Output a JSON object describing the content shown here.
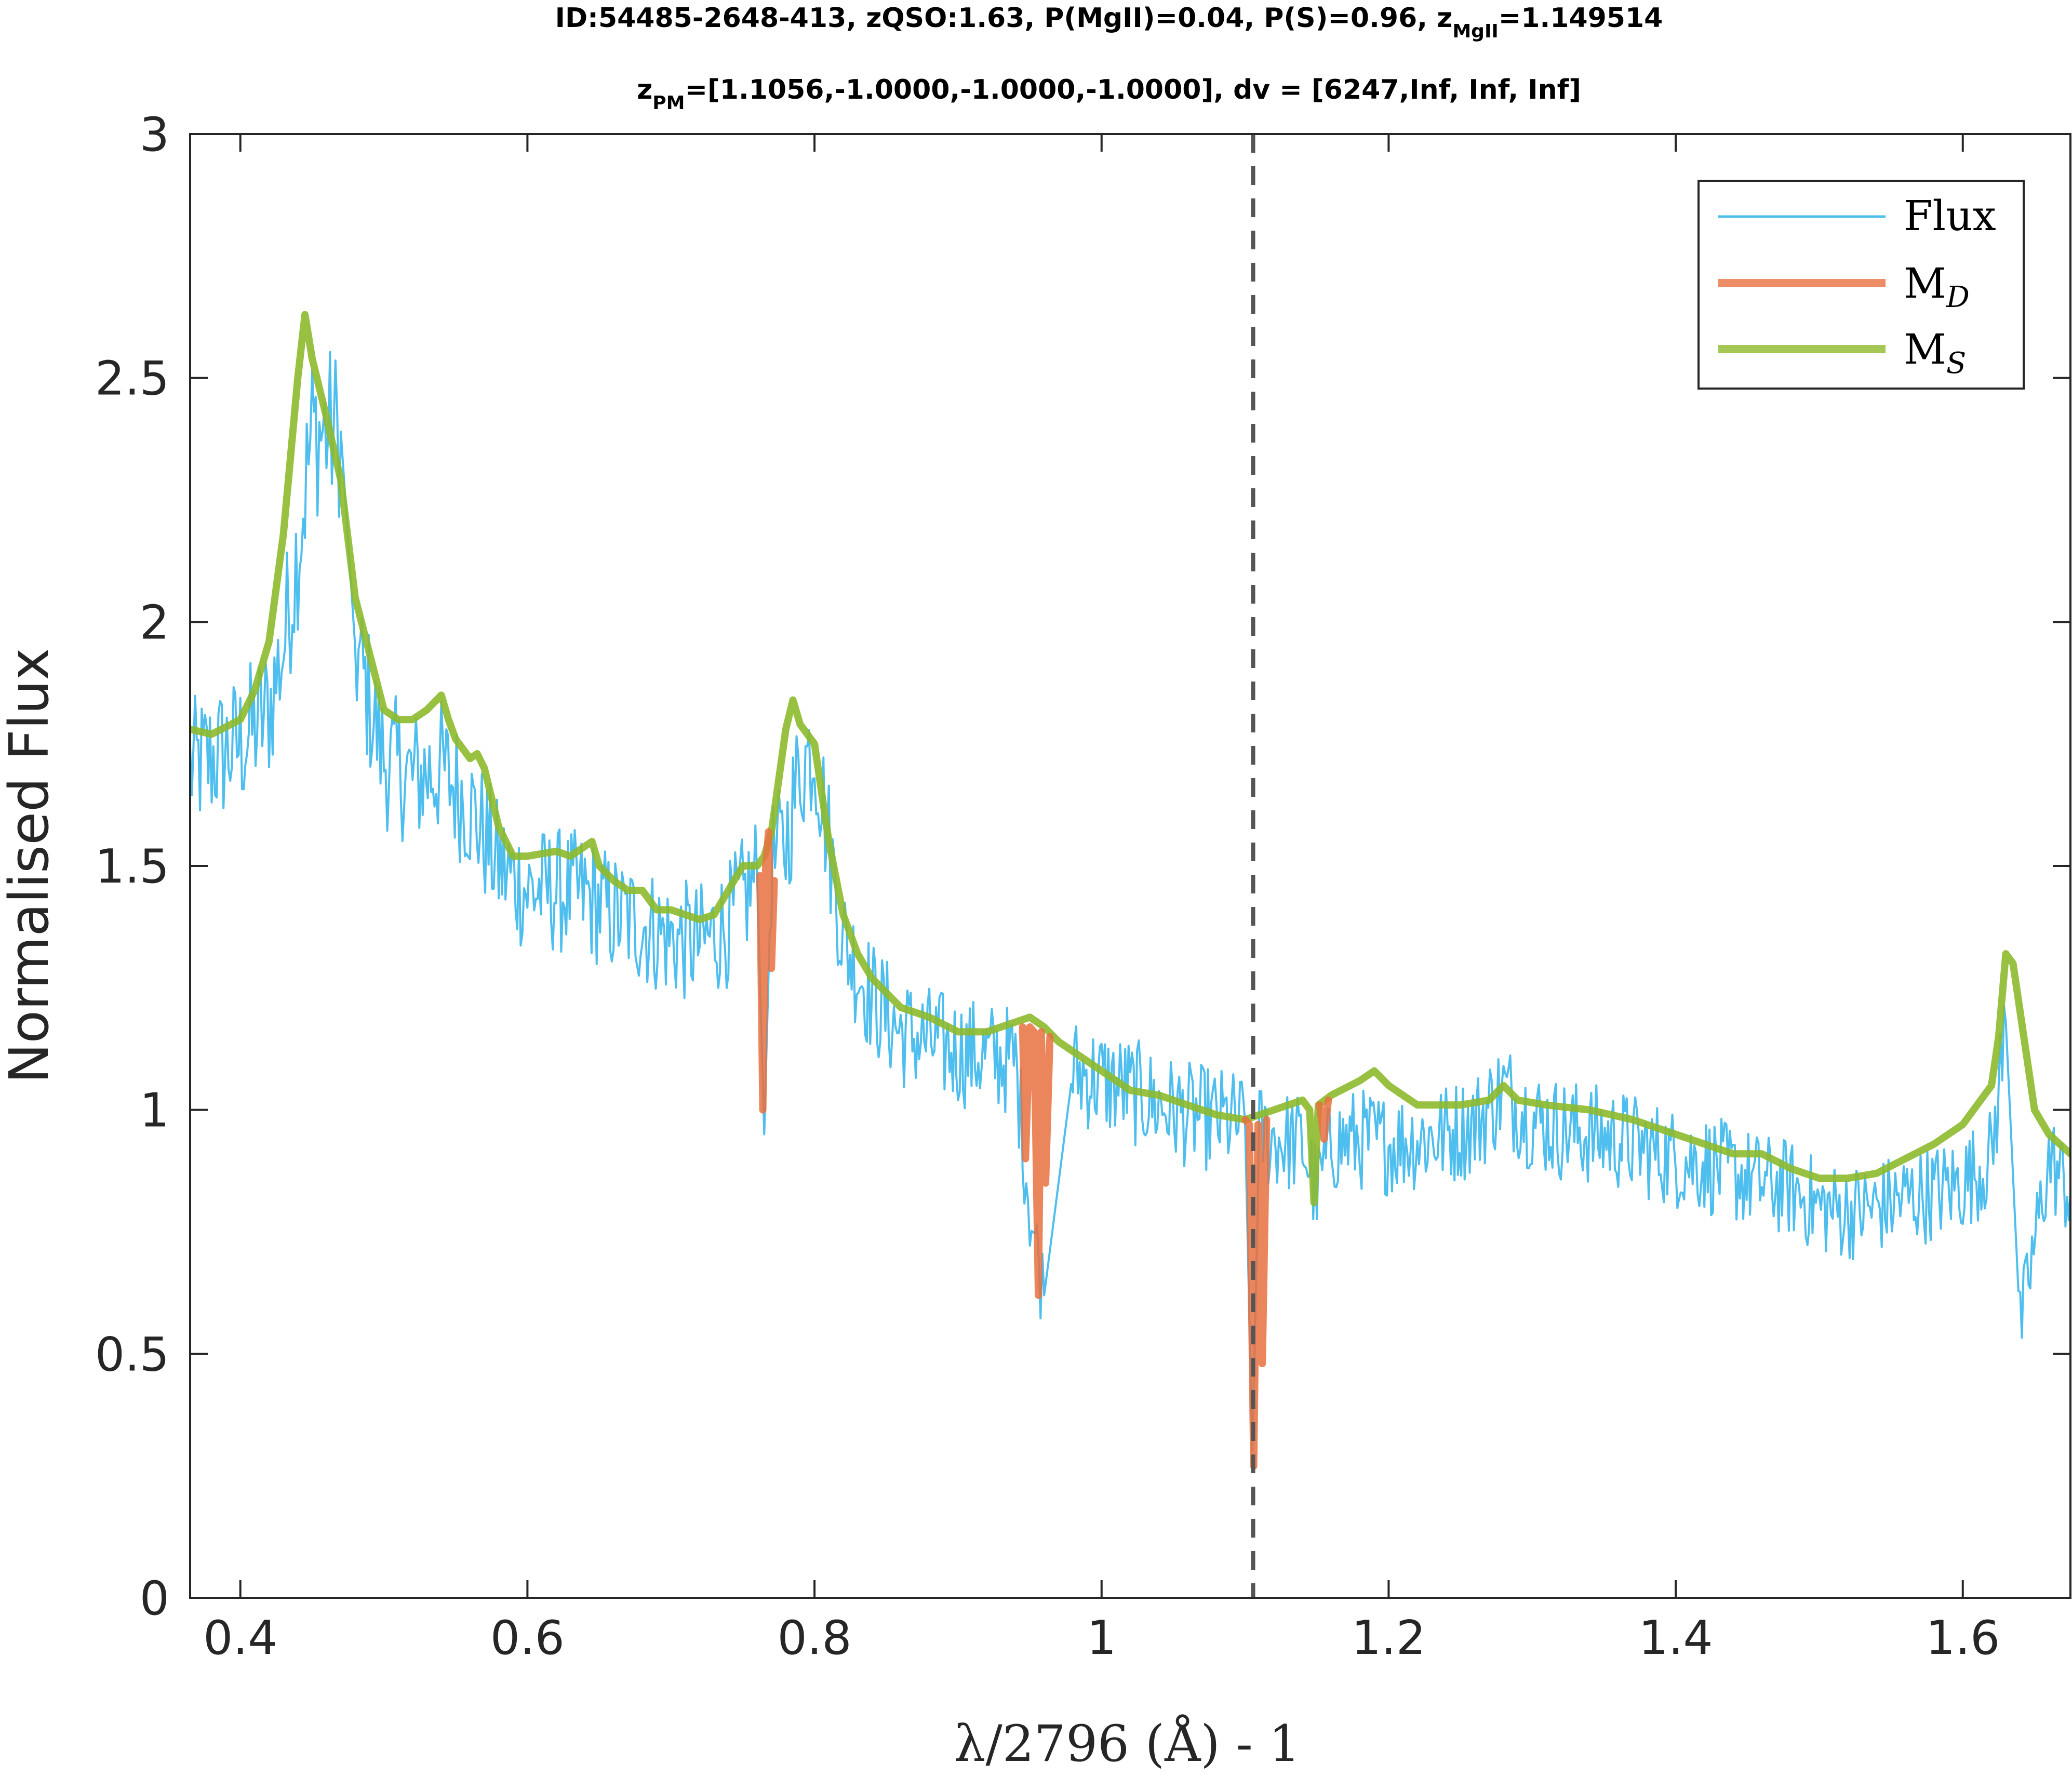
{
  "chart_data": {
    "type": "line",
    "title": {
      "line1_prefix": "ID:54485-2648-413, zQSO:1.63, P(MgII)=0.04, P(S)=0.96, z",
      "line1_sub": "MgII",
      "line1_suffix": "=1.149514",
      "line2_prefix": "z",
      "line2_sub": "PM",
      "line2_suffix": "=[1.1056,-1.0000,-1.0000,-1.0000], dv = [6247,Inf, Inf, Inf]"
    },
    "xlabel": "λ/2796 (Å) - 1",
    "ylabel": "Normalised Flux",
    "xlim": [
      0.365,
      1.675
    ],
    "ylim": [
      0,
      3
    ],
    "xticks": [
      0.4,
      0.6,
      0.8,
      1.0,
      1.2,
      1.4,
      1.6
    ],
    "xtick_labels": [
      "0.4",
      "0.6",
      "0.8",
      "1",
      "1.2",
      "1.4",
      "1.6"
    ],
    "yticks": [
      0,
      0.5,
      1,
      1.5,
      2,
      2.5,
      3
    ],
    "ytick_labels": [
      "0",
      "0.5",
      "1",
      "1.5",
      "2",
      "2.5",
      "3"
    ],
    "grid": false,
    "legend_position": "top-right",
    "vline": {
      "x": 1.1056,
      "style": "dashed",
      "color": "#555555"
    },
    "series": [
      {
        "name": "Flux",
        "color": "#4DBEEE",
        "style": "thin noisy spectrum",
        "x": [
          0.365,
          0.38,
          0.4,
          0.42,
          0.43,
          0.44,
          0.45,
          0.46,
          0.47,
          0.48,
          0.5,
          0.52,
          0.54,
          0.56,
          0.58,
          0.6,
          0.62,
          0.64,
          0.66,
          0.68,
          0.7,
          0.72,
          0.74,
          0.76,
          0.765,
          0.77,
          0.78,
          0.79,
          0.8,
          0.81,
          0.82,
          0.84,
          0.86,
          0.88,
          0.9,
          0.92,
          0.94,
          0.95,
          0.96,
          0.98,
          1.0,
          1.02,
          1.04,
          1.06,
          1.08,
          1.1,
          1.105,
          1.11,
          1.12,
          1.14,
          1.15,
          1.16,
          1.18,
          1.2,
          1.22,
          1.24,
          1.26,
          1.28,
          1.3,
          1.32,
          1.34,
          1.36,
          1.38,
          1.4,
          1.42,
          1.44,
          1.46,
          1.48,
          1.5,
          1.52,
          1.54,
          1.56,
          1.58,
          1.6,
          1.62,
          1.63,
          1.64,
          1.66,
          1.675
        ],
        "y": [
          1.7,
          1.72,
          1.75,
          1.82,
          1.95,
          2.15,
          2.39,
          2.39,
          2.39,
          1.95,
          1.72,
          1.68,
          1.7,
          1.62,
          1.5,
          1.45,
          1.45,
          1.44,
          1.4,
          1.38,
          1.35,
          1.34,
          1.38,
          1.48,
          0.95,
          1.5,
          1.55,
          1.7,
          1.75,
          1.55,
          1.35,
          1.23,
          1.16,
          1.14,
          1.12,
          1.11,
          1.1,
          0.8,
          0.62,
          1.08,
          1.06,
          1.04,
          1.01,
          0.99,
          0.98,
          0.97,
          0.3,
          0.95,
          0.94,
          0.93,
          0.83,
          0.93,
          0.94,
          0.93,
          0.94,
          0.95,
          0.97,
          1.04,
          0.98,
          0.96,
          0.95,
          0.94,
          0.92,
          0.9,
          0.89,
          0.87,
          0.85,
          0.84,
          0.8,
          0.79,
          0.8,
          0.82,
          0.83,
          0.85,
          0.9,
          1.18,
          0.55,
          0.9,
          0.83
        ]
      },
      {
        "name": "M_D",
        "color": "#E8703F",
        "style": "thick absorption segments",
        "segments": [
          {
            "x": [
              0.762,
              0.764,
              0.766,
              0.768,
              0.77,
              0.772
            ],
            "y": [
              1.48,
              1.0,
              1.5,
              1.57,
              1.29,
              1.47
            ]
          },
          {
            "x": [
              0.945,
              0.947,
              0.95,
              0.953,
              0.956,
              0.958,
              0.961,
              0.964
            ],
            "y": [
              1.17,
              0.9,
              1.17,
              1.16,
              0.62,
              1.16,
              0.85,
              1.15
            ]
          },
          {
            "x": [
              1.1,
              1.103,
              1.106,
              1.109,
              1.112,
              1.115
            ],
            "y": [
              0.98,
              0.97,
              0.27,
              0.97,
              0.48,
              0.98
            ]
          },
          {
            "x": [
              1.152,
              1.155,
              1.158
            ],
            "y": [
              1.01,
              0.94,
              1.02
            ]
          }
        ]
      },
      {
        "name": "M_S",
        "color": "#8DB92C",
        "style": "thick smooth model",
        "x": [
          0.365,
          0.38,
          0.4,
          0.41,
          0.42,
          0.43,
          0.44,
          0.445,
          0.45,
          0.46,
          0.47,
          0.48,
          0.5,
          0.51,
          0.52,
          0.53,
          0.54,
          0.545,
          0.55,
          0.56,
          0.565,
          0.57,
          0.58,
          0.59,
          0.6,
          0.62,
          0.63,
          0.64,
          0.645,
          0.65,
          0.66,
          0.67,
          0.68,
          0.69,
          0.7,
          0.72,
          0.73,
          0.74,
          0.75,
          0.76,
          0.765,
          0.77,
          0.78,
          0.785,
          0.79,
          0.8,
          0.81,
          0.82,
          0.83,
          0.84,
          0.86,
          0.88,
          0.9,
          0.92,
          0.94,
          0.95,
          0.96,
          0.97,
          0.98,
          1.0,
          1.02,
          1.04,
          1.06,
          1.08,
          1.1,
          1.11,
          1.12,
          1.14,
          1.145,
          1.148,
          1.151,
          1.16,
          1.18,
          1.19,
          1.2,
          1.22,
          1.25,
          1.27,
          1.28,
          1.29,
          1.31,
          1.34,
          1.37,
          1.4,
          1.42,
          1.44,
          1.46,
          1.48,
          1.5,
          1.52,
          1.54,
          1.56,
          1.58,
          1.6,
          1.62,
          1.625,
          1.63,
          1.635,
          1.64,
          1.65,
          1.66,
          1.675
        ],
        "y": [
          1.78,
          1.77,
          1.8,
          1.86,
          1.96,
          2.18,
          2.5,
          2.63,
          2.54,
          2.42,
          2.29,
          2.05,
          1.82,
          1.8,
          1.8,
          1.82,
          1.85,
          1.8,
          1.76,
          1.72,
          1.73,
          1.7,
          1.58,
          1.52,
          1.52,
          1.53,
          1.52,
          1.54,
          1.55,
          1.5,
          1.47,
          1.45,
          1.45,
          1.41,
          1.41,
          1.39,
          1.4,
          1.45,
          1.5,
          1.5,
          1.52,
          1.57,
          1.78,
          1.84,
          1.79,
          1.75,
          1.55,
          1.4,
          1.32,
          1.27,
          1.21,
          1.19,
          1.16,
          1.16,
          1.18,
          1.19,
          1.17,
          1.14,
          1.12,
          1.08,
          1.04,
          1.03,
          1.01,
          0.99,
          0.98,
          0.99,
          1.0,
          1.02,
          1.0,
          0.81,
          1.01,
          1.03,
          1.06,
          1.08,
          1.05,
          1.01,
          1.01,
          1.02,
          1.05,
          1.02,
          1.01,
          1.0,
          0.98,
          0.95,
          0.93,
          0.91,
          0.91,
          0.88,
          0.86,
          0.86,
          0.87,
          0.9,
          0.93,
          0.97,
          1.05,
          1.15,
          1.32,
          1.3,
          1.2,
          1.0,
          0.95,
          0.91
        ]
      }
    ],
    "legend": [
      {
        "label": "Flux",
        "sub": "",
        "color": "#4DBEEE"
      },
      {
        "label": "M",
        "sub": "D",
        "color": "#E8703F"
      },
      {
        "label": "M",
        "sub": "S",
        "color": "#8DB92C"
      }
    ]
  }
}
